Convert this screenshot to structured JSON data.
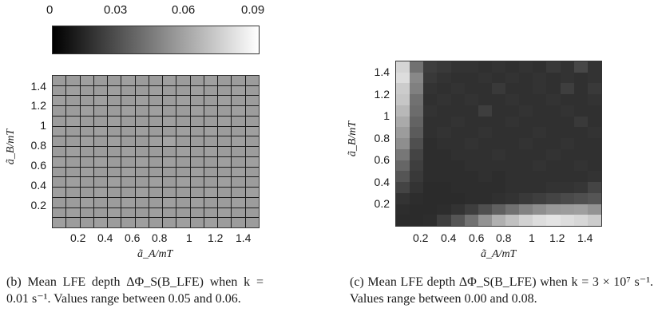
{
  "colorbar": {
    "ticks": [
      "0",
      "0.03",
      "0.06",
      "0.09"
    ],
    "range": [
      0,
      0.09
    ]
  },
  "panel_b": {
    "x_ticks": [
      "0.2",
      "0.4",
      "0.6",
      "0.8",
      "1",
      "1.2",
      "1.4"
    ],
    "y_ticks": [
      "1.4",
      "1.2",
      "1",
      "0.8",
      "0.6",
      "0.4",
      "0.2"
    ],
    "xlabel": "ã_A/mT",
    "ylabel": "ã_B/mT",
    "caption": "(b) Mean LFE depth ΔΦ_S(B_LFE) when k = 0.01 s⁻¹. Values range between 0.05 and 0.06."
  },
  "panel_c": {
    "x_ticks": [
      "0.2",
      "0.4",
      "0.6",
      "0.8",
      "1",
      "1.2",
      "1.4"
    ],
    "y_ticks": [
      "1.4",
      "1.2",
      "1",
      "0.8",
      "0.6",
      "0.4",
      "0.2"
    ],
    "xlabel": "ã_A/mT",
    "ylabel": "ã_B/mT",
    "caption": "(c) Mean LFE depth ΔΦ_S(B_LFE) when k = 3 × 10⁷ s⁻¹. Values range between 0.00 and 0.08."
  },
  "chart_data": [
    {
      "type": "heatmap",
      "title": "",
      "xlabel": "ã_A/mT",
      "ylabel": "ã_B/mT",
      "x": [
        0.1,
        0.2,
        0.3,
        0.4,
        0.5,
        0.6,
        0.7,
        0.8,
        0.9,
        1.0,
        1.1,
        1.2,
        1.3,
        1.4,
        1.5
      ],
      "y": [
        1.5,
        1.4,
        1.3,
        1.2,
        1.1,
        1.0,
        0.9,
        0.8,
        0.7,
        0.6,
        0.5,
        0.4,
        0.3,
        0.2,
        0.1
      ],
      "zlim": [
        0,
        0.09
      ],
      "values": [
        [
          0.055,
          0.055,
          0.056,
          0.055,
          0.055,
          0.056,
          0.055,
          0.055,
          0.056,
          0.055,
          0.055,
          0.056,
          0.055,
          0.055,
          0.055
        ],
        [
          0.055,
          0.056,
          0.055,
          0.055,
          0.056,
          0.055,
          0.055,
          0.056,
          0.055,
          0.055,
          0.056,
          0.055,
          0.055,
          0.056,
          0.055
        ],
        [
          0.056,
          0.055,
          0.055,
          0.056,
          0.055,
          0.055,
          0.056,
          0.055,
          0.055,
          0.056,
          0.055,
          0.055,
          0.056,
          0.055,
          0.055
        ],
        [
          0.055,
          0.055,
          0.056,
          0.055,
          0.055,
          0.056,
          0.055,
          0.056,
          0.055,
          0.055,
          0.056,
          0.055,
          0.055,
          0.056,
          0.055
        ],
        [
          0.055,
          0.056,
          0.055,
          0.055,
          0.056,
          0.055,
          0.055,
          0.055,
          0.056,
          0.055,
          0.055,
          0.055,
          0.056,
          0.055,
          0.055
        ],
        [
          0.056,
          0.055,
          0.055,
          0.056,
          0.055,
          0.055,
          0.056,
          0.055,
          0.055,
          0.056,
          0.055,
          0.056,
          0.055,
          0.055,
          0.056
        ],
        [
          0.055,
          0.055,
          0.056,
          0.055,
          0.056,
          0.055,
          0.055,
          0.056,
          0.058,
          0.055,
          0.055,
          0.055,
          0.055,
          0.056,
          0.055
        ],
        [
          0.055,
          0.056,
          0.055,
          0.055,
          0.055,
          0.056,
          0.055,
          0.055,
          0.055,
          0.056,
          0.055,
          0.056,
          0.055,
          0.055,
          0.055
        ],
        [
          0.056,
          0.055,
          0.055,
          0.056,
          0.055,
          0.055,
          0.056,
          0.055,
          0.056,
          0.055,
          0.055,
          0.055,
          0.056,
          0.055,
          0.056
        ],
        [
          0.055,
          0.055,
          0.056,
          0.055,
          0.055,
          0.056,
          0.055,
          0.055,
          0.055,
          0.055,
          0.056,
          0.055,
          0.055,
          0.056,
          0.055
        ],
        [
          0.055,
          0.056,
          0.055,
          0.055,
          0.056,
          0.055,
          0.055,
          0.056,
          0.055,
          0.056,
          0.055,
          0.055,
          0.056,
          0.055,
          0.055
        ],
        [
          0.056,
          0.055,
          0.055,
          0.056,
          0.055,
          0.055,
          0.056,
          0.055,
          0.055,
          0.055,
          0.055,
          0.056,
          0.055,
          0.055,
          0.056
        ],
        [
          0.055,
          0.055,
          0.056,
          0.055,
          0.055,
          0.056,
          0.055,
          0.055,
          0.056,
          0.055,
          0.056,
          0.055,
          0.055,
          0.056,
          0.055
        ],
        [
          0.055,
          0.056,
          0.055,
          0.055,
          0.056,
          0.055,
          0.055,
          0.056,
          0.055,
          0.055,
          0.055,
          0.055,
          0.056,
          0.055,
          0.055
        ],
        [
          0.056,
          0.055,
          0.055,
          0.056,
          0.055,
          0.055,
          0.056,
          0.055,
          0.055,
          0.056,
          0.055,
          0.056,
          0.055,
          0.055,
          0.055
        ]
      ]
    },
    {
      "type": "heatmap",
      "title": "",
      "xlabel": "ã_A/mT",
      "ylabel": "ã_B/mT",
      "x": [
        0.1,
        0.2,
        0.3,
        0.4,
        0.5,
        0.6,
        0.7,
        0.8,
        0.9,
        1.0,
        1.1,
        1.2,
        1.3,
        1.4,
        1.5
      ],
      "y": [
        1.5,
        1.4,
        1.3,
        1.2,
        1.1,
        1.0,
        0.9,
        0.8,
        0.7,
        0.6,
        0.5,
        0.4,
        0.3,
        0.2,
        0.1
      ],
      "zlim": [
        0,
        0.09
      ],
      "values": [
        [
          0.075,
          0.04,
          0.022,
          0.02,
          0.018,
          0.018,
          0.017,
          0.018,
          0.017,
          0.018,
          0.017,
          0.02,
          0.018,
          0.025,
          0.018
        ],
        [
          0.078,
          0.048,
          0.02,
          0.018,
          0.017,
          0.017,
          0.018,
          0.017,
          0.018,
          0.017,
          0.018,
          0.017,
          0.018,
          0.017,
          0.018
        ],
        [
          0.072,
          0.045,
          0.018,
          0.017,
          0.018,
          0.017,
          0.017,
          0.02,
          0.017,
          0.017,
          0.018,
          0.017,
          0.022,
          0.017,
          0.02
        ],
        [
          0.07,
          0.04,
          0.017,
          0.018,
          0.017,
          0.018,
          0.017,
          0.017,
          0.018,
          0.017,
          0.017,
          0.018,
          0.017,
          0.017,
          0.018
        ],
        [
          0.065,
          0.038,
          0.018,
          0.017,
          0.017,
          0.017,
          0.022,
          0.017,
          0.017,
          0.018,
          0.017,
          0.017,
          0.018,
          0.017,
          0.017
        ],
        [
          0.06,
          0.035,
          0.017,
          0.017,
          0.018,
          0.017,
          0.017,
          0.017,
          0.018,
          0.017,
          0.017,
          0.017,
          0.017,
          0.02,
          0.017
        ],
        [
          0.055,
          0.032,
          0.017,
          0.018,
          0.017,
          0.017,
          0.018,
          0.017,
          0.017,
          0.017,
          0.018,
          0.017,
          0.017,
          0.017,
          0.018
        ],
        [
          0.05,
          0.028,
          0.016,
          0.017,
          0.017,
          0.018,
          0.017,
          0.017,
          0.017,
          0.018,
          0.017,
          0.017,
          0.018,
          0.017,
          0.017
        ],
        [
          0.042,
          0.024,
          0.016,
          0.016,
          0.017,
          0.017,
          0.017,
          0.018,
          0.017,
          0.017,
          0.017,
          0.018,
          0.017,
          0.017,
          0.017
        ],
        [
          0.036,
          0.022,
          0.016,
          0.016,
          0.016,
          0.017,
          0.017,
          0.017,
          0.017,
          0.017,
          0.018,
          0.017,
          0.017,
          0.018,
          0.017
        ],
        [
          0.03,
          0.02,
          0.016,
          0.016,
          0.016,
          0.016,
          0.017,
          0.016,
          0.017,
          0.017,
          0.017,
          0.017,
          0.017,
          0.017,
          0.018
        ],
        [
          0.024,
          0.018,
          0.015,
          0.015,
          0.016,
          0.016,
          0.016,
          0.016,
          0.017,
          0.017,
          0.017,
          0.018,
          0.018,
          0.019,
          0.024
        ],
        [
          0.018,
          0.016,
          0.015,
          0.015,
          0.015,
          0.016,
          0.016,
          0.017,
          0.018,
          0.02,
          0.022,
          0.024,
          0.026,
          0.028,
          0.03
        ],
        [
          0.016,
          0.015,
          0.015,
          0.016,
          0.018,
          0.022,
          0.028,
          0.034,
          0.04,
          0.046,
          0.05,
          0.054,
          0.055,
          0.056,
          0.052
        ],
        [
          0.015,
          0.015,
          0.016,
          0.022,
          0.03,
          0.04,
          0.052,
          0.062,
          0.068,
          0.074,
          0.078,
          0.08,
          0.078,
          0.076,
          0.072
        ]
      ]
    }
  ]
}
